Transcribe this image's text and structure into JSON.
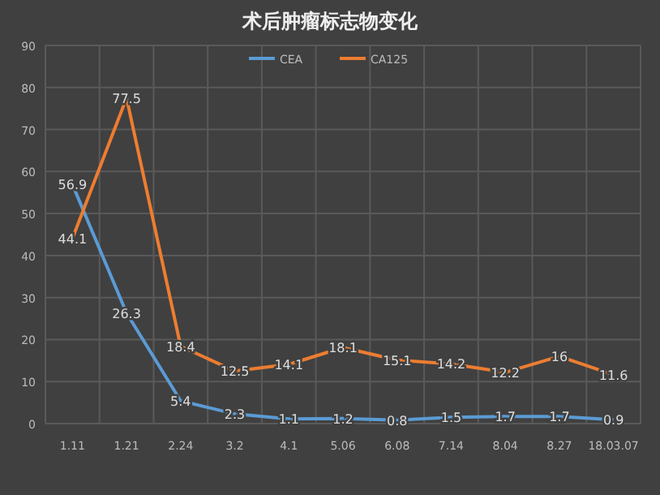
{
  "chart_data": {
    "type": "line",
    "title": "术后肿瘤标志物变化",
    "categories": [
      "1.11",
      "1.21",
      "2.24",
      "3.2",
      "4.1",
      "5.06",
      "6.08",
      "7.14",
      "8.04",
      "8.27",
      "18.03.07"
    ],
    "series": [
      {
        "name": "CEA",
        "color": "#5b9bd5",
        "values": [
          56.9,
          26.3,
          5.4,
          2.3,
          1.1,
          1.2,
          0.8,
          1.5,
          1.7,
          1.7,
          0.9
        ]
      },
      {
        "name": "CA125",
        "color": "#ed7d31",
        "values": [
          44.1,
          77.5,
          18.4,
          12.5,
          14.1,
          18.1,
          15.1,
          14.2,
          12.2,
          16,
          11.6
        ]
      }
    ],
    "ylim": [
      0,
      90
    ],
    "yticks": [
      0,
      10,
      20,
      30,
      40,
      50,
      60,
      70,
      80,
      90
    ],
    "grid": true,
    "legend": "top",
    "data_labels": true,
    "marker": "none",
    "line_style": "solid"
  }
}
